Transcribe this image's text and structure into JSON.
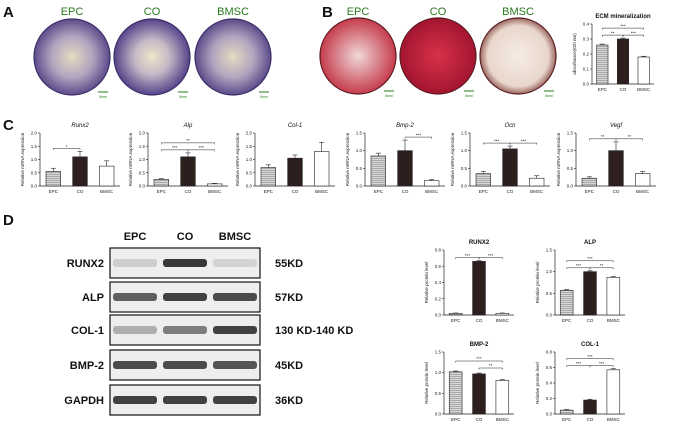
{
  "panels": {
    "A": "A",
    "B": "B",
    "C": "C",
    "D": "D"
  },
  "groups": [
    "EPC",
    "CO",
    "BMSC"
  ],
  "scale_bar_text": "5mm",
  "chart_data": [
    {
      "id": "ecm",
      "type": "bar",
      "title": "ECM mineralization",
      "ylabel": "absorbance(620 nm)",
      "categories": [
        "EPC",
        "CO",
        "BMSC"
      ],
      "values": [
        0.26,
        0.3,
        0.18
      ],
      "errors": [
        0.006,
        0.006,
        0.005
      ],
      "ylim": [
        0,
        0.4
      ],
      "yticks": [
        "0.0",
        "0.1",
        "0.2",
        "0.3",
        "0.4"
      ],
      "sig": [
        {
          "a": 0,
          "b": 1,
          "t": "**"
        },
        {
          "a": 1,
          "b": 2,
          "t": "***"
        },
        {
          "a": 0,
          "b": 2,
          "t": "***"
        }
      ]
    },
    {
      "id": "runx2",
      "type": "bar",
      "title": "Runx2",
      "ylabel": "Relative mRNA expression",
      "categories": [
        "EPC",
        "CO",
        "BMSC"
      ],
      "values": [
        0.55,
        1.1,
        0.75
      ],
      "errors": [
        0.12,
        0.2,
        0.2
      ],
      "ylim": [
        0,
        2.0
      ],
      "yticks": [
        "0.0",
        "0.5",
        "1.0",
        "1.5",
        "2.0"
      ],
      "sig": [
        {
          "a": 0,
          "b": 1,
          "t": "*"
        }
      ]
    },
    {
      "id": "alp",
      "type": "bar",
      "title": "Alp",
      "ylabel": "Relative mRNA expression",
      "categories": [
        "EPC",
        "CO",
        "BMSC"
      ],
      "values": [
        0.25,
        1.1,
        0.08
      ],
      "errors": [
        0.03,
        0.15,
        0.02
      ],
      "ylim": [
        0,
        2.0
      ],
      "yticks": [
        "0.0",
        "0.5",
        "1.0",
        "1.5",
        "2.0"
      ],
      "sig": [
        {
          "a": 0,
          "b": 1,
          "t": "***"
        },
        {
          "a": 1,
          "b": 2,
          "t": "***"
        },
        {
          "a": 0,
          "b": 2,
          "t": "**"
        }
      ]
    },
    {
      "id": "col1",
      "type": "bar",
      "title": "Col-1",
      "ylabel": "Relative mRNA expression",
      "categories": [
        "EPC",
        "CO",
        "BMSC"
      ],
      "values": [
        0.7,
        1.05,
        1.3
      ],
      "errors": [
        0.1,
        0.12,
        0.35
      ],
      "ylim": [
        0,
        2.0
      ],
      "yticks": [
        "0.0",
        "0.5",
        "1.0",
        "1.5",
        "2.0"
      ],
      "sig": []
    },
    {
      "id": "bmp2",
      "type": "bar",
      "title": "Bmp-2",
      "ylabel": "Relative mRNA expression",
      "categories": [
        "EPC",
        "CO",
        "BMSC"
      ],
      "values": [
        0.85,
        1.0,
        0.15
      ],
      "errors": [
        0.08,
        0.3,
        0.03
      ],
      "ylim": [
        0,
        1.5
      ],
      "yticks": [
        "0.0",
        "0.5",
        "1.0",
        "1.5"
      ],
      "sig": [
        {
          "a": 1,
          "b": 2,
          "t": "***"
        }
      ]
    },
    {
      "id": "ocn",
      "type": "bar",
      "title": "Ocn",
      "ylabel": "Relative mRNA expression",
      "categories": [
        "EPC",
        "CO",
        "BMSC"
      ],
      "values": [
        0.35,
        1.05,
        0.22
      ],
      "errors": [
        0.06,
        0.08,
        0.07
      ],
      "ylim": [
        0,
        1.5
      ],
      "yticks": [
        "0.0",
        "0.5",
        "1.0",
        "1.5"
      ],
      "sig": [
        {
          "a": 0,
          "b": 1,
          "t": "***"
        },
        {
          "a": 1,
          "b": 2,
          "t": "***"
        }
      ]
    },
    {
      "id": "vegf",
      "type": "bar",
      "title": "Vegf",
      "ylabel": "Relative mRNA expression",
      "categories": [
        "EPC",
        "CO",
        "BMSC"
      ],
      "values": [
        0.22,
        1.0,
        0.35
      ],
      "errors": [
        0.04,
        0.25,
        0.06
      ],
      "ylim": [
        0,
        1.5
      ],
      "yticks": [
        "0.0",
        "0.5",
        "1.0",
        "1.5"
      ],
      "sig": [
        {
          "a": 0,
          "b": 1,
          "t": "**"
        },
        {
          "a": 1,
          "b": 2,
          "t": "**"
        }
      ]
    },
    {
      "id": "p_runx2",
      "type": "bar",
      "title": "RUNX2",
      "ylabel": "Relative protein level",
      "categories": [
        "EPC",
        "CO",
        "BMSC"
      ],
      "values": [
        0.02,
        0.66,
        0.02
      ],
      "errors": [
        0.005,
        0.01,
        0.005
      ],
      "ylim": [
        0,
        0.8
      ],
      "yticks": [
        "0.0",
        "0.2",
        "0.4",
        "0.6",
        "0.8"
      ],
      "sig": [
        {
          "a": 0,
          "b": 1,
          "t": "***"
        },
        {
          "a": 1,
          "b": 2,
          "t": "***"
        }
      ]
    },
    {
      "id": "p_alp",
      "type": "bar",
      "title": "ALP",
      "ylabel": "Relative protein level",
      "categories": [
        "EPC",
        "CO",
        "BMSC"
      ],
      "values": [
        0.57,
        1.0,
        0.87
      ],
      "errors": [
        0.02,
        0.02,
        0.02
      ],
      "ylim": [
        0,
        1.5
      ],
      "yticks": [
        "0.0",
        "0.5",
        "1.0",
        "1.5"
      ],
      "sig": [
        {
          "a": 0,
          "b": 1,
          "t": "***"
        },
        {
          "a": 1,
          "b": 2,
          "t": "**"
        },
        {
          "a": 0,
          "b": 2,
          "t": "***"
        }
      ]
    },
    {
      "id": "p_bmp2",
      "type": "bar",
      "title": "BMP-2",
      "ylabel": "Relative protein level",
      "categories": [
        "EPC",
        "CO",
        "BMSC"
      ],
      "values": [
        1.02,
        0.97,
        0.81
      ],
      "errors": [
        0.02,
        0.02,
        0.02
      ],
      "ylim": [
        0,
        1.5
      ],
      "yticks": [
        "0.0",
        "0.5",
        "1.0",
        "1.5"
      ],
      "sig": [
        {
          "a": 1,
          "b": 2,
          "t": "**"
        },
        {
          "a": 0,
          "b": 2,
          "t": "***"
        }
      ]
    },
    {
      "id": "p_col1",
      "type": "bar",
      "title": "COL-1",
      "ylabel": "Relative protein level",
      "categories": [
        "EPC",
        "CO",
        "BMSC"
      ],
      "values": [
        0.05,
        0.18,
        0.57
      ],
      "errors": [
        0.01,
        0.01,
        0.015
      ],
      "ylim": [
        0,
        0.8
      ],
      "yticks": [
        "0.0",
        "0.2",
        "0.4",
        "0.6",
        "0.8"
      ],
      "sig": [
        {
          "a": 0,
          "b": 1,
          "t": "***"
        },
        {
          "a": 1,
          "b": 2,
          "t": "***"
        },
        {
          "a": 0,
          "b": 2,
          "t": "***"
        }
      ]
    }
  ],
  "western": {
    "lanes": [
      "EPC",
      "CO",
      "BMSC"
    ],
    "rows": [
      {
        "protein": "RUNX2",
        "kd": "55KD",
        "intensity": [
          0.15,
          0.9,
          0.12
        ]
      },
      {
        "protein": "ALP",
        "kd": "57KD",
        "intensity": [
          0.7,
          0.85,
          0.8
        ]
      },
      {
        "protein": "COL-1",
        "kd": "130 KD-140 KD",
        "intensity": [
          0.3,
          0.55,
          0.85
        ]
      },
      {
        "protein": "BMP-2",
        "kd": "45KD",
        "intensity": [
          0.8,
          0.8,
          0.75
        ]
      },
      {
        "protein": "GAPDH",
        "kd": "36KD",
        "intensity": [
          0.85,
          0.85,
          0.85
        ]
      }
    ]
  }
}
